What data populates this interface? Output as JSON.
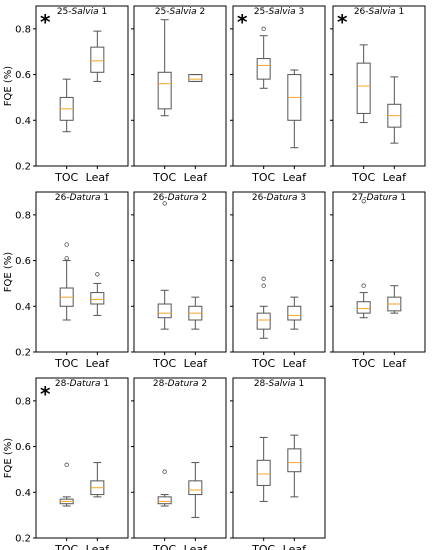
{
  "figure": {
    "y_axis_label": "FQE (%)"
  },
  "chart_data": [
    {
      "type": "box",
      "title_prefix": "25-",
      "title_italic": "Salvia",
      "title_suffix": " 1",
      "significant": true,
      "categories": [
        "TOC",
        "Leaf"
      ],
      "ylim": [
        0.2,
        0.9
      ],
      "yticks": [
        0.2,
        0.4,
        0.6,
        0.8
      ],
      "boxes": [
        {
          "category": "TOC",
          "min": 0.35,
          "q1": 0.4,
          "median": 0.45,
          "q3": 0.5,
          "max": 0.58,
          "outliers": []
        },
        {
          "category": "Leaf",
          "min": 0.57,
          "q1": 0.61,
          "median": 0.66,
          "q3": 0.72,
          "max": 0.79,
          "outliers": []
        }
      ]
    },
    {
      "type": "box",
      "title_prefix": "25-",
      "title_italic": "Salvia",
      "title_suffix": " 2",
      "significant": false,
      "categories": [
        "TOC",
        "Leaf"
      ],
      "ylim": [
        0.2,
        0.9
      ],
      "yticks": [
        0.2,
        0.4,
        0.6,
        0.8
      ],
      "boxes": [
        {
          "category": "TOC",
          "min": 0.42,
          "q1": 0.45,
          "median": 0.56,
          "q3": 0.61,
          "max": 0.84,
          "outliers": []
        },
        {
          "category": "Leaf",
          "min": 0.57,
          "q1": 0.57,
          "median": 0.58,
          "q3": 0.6,
          "max": 0.6,
          "outliers": []
        }
      ]
    },
    {
      "type": "box",
      "title_prefix": "25-",
      "title_italic": "Salvia",
      "title_suffix": " 3",
      "significant": true,
      "categories": [
        "TOC",
        "Leaf"
      ],
      "ylim": [
        0.2,
        0.9
      ],
      "yticks": [
        0.2,
        0.4,
        0.6,
        0.8
      ],
      "boxes": [
        {
          "category": "TOC",
          "min": 0.54,
          "q1": 0.58,
          "median": 0.64,
          "q3": 0.67,
          "max": 0.77,
          "outliers": [
            0.8
          ]
        },
        {
          "category": "Leaf",
          "min": 0.28,
          "q1": 0.4,
          "median": 0.5,
          "q3": 0.6,
          "max": 0.62,
          "outliers": []
        }
      ]
    },
    {
      "type": "box",
      "title_prefix": "26-",
      "title_italic": "Salvia",
      "title_suffix": " 1",
      "significant": true,
      "categories": [
        "TOC",
        "Leaf"
      ],
      "ylim": [
        0.2,
        0.9
      ],
      "yticks": [
        0.2,
        0.4,
        0.6,
        0.8
      ],
      "boxes": [
        {
          "category": "TOC",
          "min": 0.39,
          "q1": 0.43,
          "median": 0.55,
          "q3": 0.65,
          "max": 0.73,
          "outliers": []
        },
        {
          "category": "Leaf",
          "min": 0.3,
          "q1": 0.37,
          "median": 0.42,
          "q3": 0.47,
          "max": 0.59,
          "outliers": []
        }
      ]
    },
    {
      "type": "box",
      "title_prefix": "26-",
      "title_italic": "Datura",
      "title_suffix": " 1",
      "significant": false,
      "categories": [
        "TOC",
        "Leaf"
      ],
      "ylim": [
        0.2,
        0.9
      ],
      "yticks": [
        0.2,
        0.4,
        0.6,
        0.8
      ],
      "boxes": [
        {
          "category": "TOC",
          "min": 0.34,
          "q1": 0.4,
          "median": 0.44,
          "q3": 0.48,
          "max": 0.6,
          "outliers": [
            0.61,
            0.67
          ]
        },
        {
          "category": "Leaf",
          "min": 0.36,
          "q1": 0.41,
          "median": 0.43,
          "q3": 0.46,
          "max": 0.5,
          "outliers": [
            0.54
          ]
        }
      ]
    },
    {
      "type": "box",
      "title_prefix": "26-",
      "title_italic": "Datura",
      "title_suffix": " 2",
      "significant": false,
      "categories": [
        "TOC",
        "Leaf"
      ],
      "ylim": [
        0.2,
        0.9
      ],
      "yticks": [
        0.2,
        0.4,
        0.6,
        0.8
      ],
      "boxes": [
        {
          "category": "TOC",
          "min": 0.3,
          "q1": 0.35,
          "median": 0.37,
          "q3": 0.41,
          "max": 0.47,
          "outliers": [
            0.85
          ]
        },
        {
          "category": "Leaf",
          "min": 0.3,
          "q1": 0.34,
          "median": 0.37,
          "q3": 0.4,
          "max": 0.44,
          "outliers": []
        }
      ]
    },
    {
      "type": "box",
      "title_prefix": "26-",
      "title_italic": "Datura",
      "title_suffix": " 3",
      "significant": false,
      "categories": [
        "TOC",
        "Leaf"
      ],
      "ylim": [
        0.2,
        0.9
      ],
      "yticks": [
        0.2,
        0.4,
        0.6,
        0.8
      ],
      "boxes": [
        {
          "category": "TOC",
          "min": 0.26,
          "q1": 0.3,
          "median": 0.34,
          "q3": 0.37,
          "max": 0.4,
          "outliers": [
            0.49,
            0.52
          ]
        },
        {
          "category": "Leaf",
          "min": 0.3,
          "q1": 0.34,
          "median": 0.36,
          "q3": 0.4,
          "max": 0.44,
          "outliers": []
        }
      ]
    },
    {
      "type": "box",
      "title_prefix": "27-",
      "title_italic": "Datura",
      "title_suffix": " 1",
      "significant": false,
      "categories": [
        "TOC",
        "Leaf"
      ],
      "ylim": [
        0.2,
        0.9
      ],
      "yticks": [
        0.2,
        0.4,
        0.6,
        0.8
      ],
      "boxes": [
        {
          "category": "TOC",
          "min": 0.35,
          "q1": 0.37,
          "median": 0.39,
          "q3": 0.42,
          "max": 0.46,
          "outliers": [
            0.49,
            0.86
          ]
        },
        {
          "category": "Leaf",
          "min": 0.37,
          "q1": 0.38,
          "median": 0.41,
          "q3": 0.44,
          "max": 0.49,
          "outliers": []
        }
      ]
    },
    {
      "type": "box",
      "title_prefix": "28-",
      "title_italic": "Datura",
      "title_suffix": " 1",
      "significant": true,
      "categories": [
        "TOC",
        "Leaf"
      ],
      "ylim": [
        0.2,
        0.9
      ],
      "yticks": [
        0.2,
        0.4,
        0.6,
        0.8
      ],
      "boxes": [
        {
          "category": "TOC",
          "min": 0.34,
          "q1": 0.35,
          "median": 0.36,
          "q3": 0.37,
          "max": 0.38,
          "outliers": [
            0.52
          ]
        },
        {
          "category": "Leaf",
          "min": 0.38,
          "q1": 0.39,
          "median": 0.42,
          "q3": 0.45,
          "max": 0.53,
          "outliers": []
        }
      ]
    },
    {
      "type": "box",
      "title_prefix": "28-",
      "title_italic": "Datura",
      "title_suffix": " 2",
      "significant": false,
      "categories": [
        "TOC",
        "Leaf"
      ],
      "ylim": [
        0.2,
        0.9
      ],
      "yticks": [
        0.2,
        0.4,
        0.6,
        0.8
      ],
      "boxes": [
        {
          "category": "TOC",
          "min": 0.34,
          "q1": 0.35,
          "median": 0.36,
          "q3": 0.38,
          "max": 0.39,
          "outliers": [
            0.49
          ]
        },
        {
          "category": "Leaf",
          "min": 0.29,
          "q1": 0.39,
          "median": 0.41,
          "q3": 0.45,
          "max": 0.53,
          "outliers": []
        }
      ]
    },
    {
      "type": "box",
      "title_prefix": "28-",
      "title_italic": "Salvia",
      "title_suffix": " 1",
      "significant": false,
      "categories": [
        "TOC",
        "Leaf"
      ],
      "ylim": [
        0.2,
        0.9
      ],
      "yticks": [
        0.2,
        0.4,
        0.6,
        0.8
      ],
      "boxes": [
        {
          "category": "TOC",
          "min": 0.36,
          "q1": 0.43,
          "median": 0.48,
          "q3": 0.54,
          "max": 0.64,
          "outliers": []
        },
        {
          "category": "Leaf",
          "min": 0.38,
          "q1": 0.49,
          "median": 0.53,
          "q3": 0.59,
          "max": 0.65,
          "outliers": []
        }
      ]
    }
  ],
  "style": {
    "box_color": "#555555",
    "median_color": "#f5a623",
    "mean_color": "#2ca02c",
    "panel_border": "#000000",
    "significance_mark": "*"
  }
}
